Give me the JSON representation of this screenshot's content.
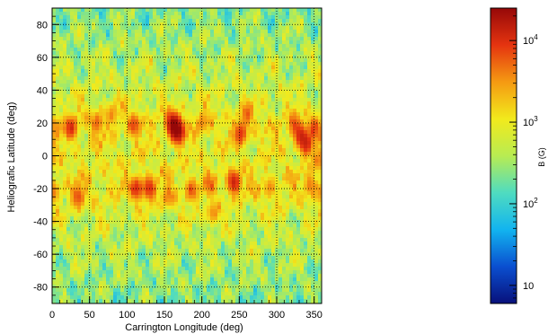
{
  "chart_data": {
    "type": "heatmap",
    "title": "",
    "xlabel": "Carrington Longitude (deg)",
    "ylabel": "Heliografic Latitude (deg)",
    "colorbar_label": "B (G)",
    "xlim": [
      0,
      360
    ],
    "ylim": [
      -90,
      90
    ],
    "x_ticks": [
      0,
      50,
      100,
      150,
      200,
      250,
      300,
      350
    ],
    "y_ticks": [
      -80,
      -60,
      -40,
      -20,
      0,
      20,
      40,
      60,
      80
    ],
    "grid": true,
    "colorbar": {
      "scale": "log",
      "range": [
        6,
        25000
      ],
      "ticks": [
        10,
        100,
        1000,
        10000
      ],
      "tick_labels": [
        {
          "base": "10",
          "exp": ""
        },
        {
          "base": "10",
          "exp": "2"
        },
        {
          "base": "10",
          "exp": "3"
        },
        {
          "base": "10",
          "exp": "4"
        }
      ],
      "colormap": [
        "#08107a",
        "#0a4fd0",
        "#12b4ef",
        "#4fdcc0",
        "#b8ec52",
        "#f2ea1c",
        "#f59a12",
        "#e53410",
        "#960808"
      ]
    },
    "background_level": 800,
    "active_regions": [
      {
        "lon": 162,
        "lat": 19,
        "B": 25000
      },
      {
        "lon": 168,
        "lat": 15,
        "B": 22000
      },
      {
        "lon": 25,
        "lat": 17,
        "B": 9000
      },
      {
        "lon": 60,
        "lat": 20,
        "B": 4500
      },
      {
        "lon": 110,
        "lat": 19,
        "B": 6000
      },
      {
        "lon": 113,
        "lat": -20,
        "B": 9000
      },
      {
        "lon": 130,
        "lat": -20,
        "B": 9000
      },
      {
        "lon": 186,
        "lat": -21,
        "B": 5000
      },
      {
        "lon": 210,
        "lat": -18,
        "B": 3000
      },
      {
        "lon": 243,
        "lat": -16,
        "B": 12000
      },
      {
        "lon": 252,
        "lat": 14,
        "B": 8000
      },
      {
        "lon": 260,
        "lat": 25,
        "B": 4000
      },
      {
        "lon": 35,
        "lat": -25,
        "B": 6000
      },
      {
        "lon": 333,
        "lat": 12,
        "B": 10000
      },
      {
        "lon": 340,
        "lat": 7,
        "B": 10000
      },
      {
        "lon": 325,
        "lat": 18,
        "B": 6000
      },
      {
        "lon": 350,
        "lat": 17,
        "B": 6000
      },
      {
        "lon": 345,
        "lat": -18,
        "B": 3500
      },
      {
        "lon": 355,
        "lat": -3,
        "B": 3500
      },
      {
        "lon": 2,
        "lat": -22,
        "B": 3000
      },
      {
        "lon": 5,
        "lat": 18,
        "B": 2500
      },
      {
        "lon": 215,
        "lat": -35,
        "B": 3000
      },
      {
        "lon": 155,
        "lat": -25,
        "B": 3000
      },
      {
        "lon": 200,
        "lat": 20,
        "B": 2800
      },
      {
        "lon": 80,
        "lat": 25,
        "B": 2500
      },
      {
        "lon": 290,
        "lat": -20,
        "B": 2200
      }
    ]
  }
}
